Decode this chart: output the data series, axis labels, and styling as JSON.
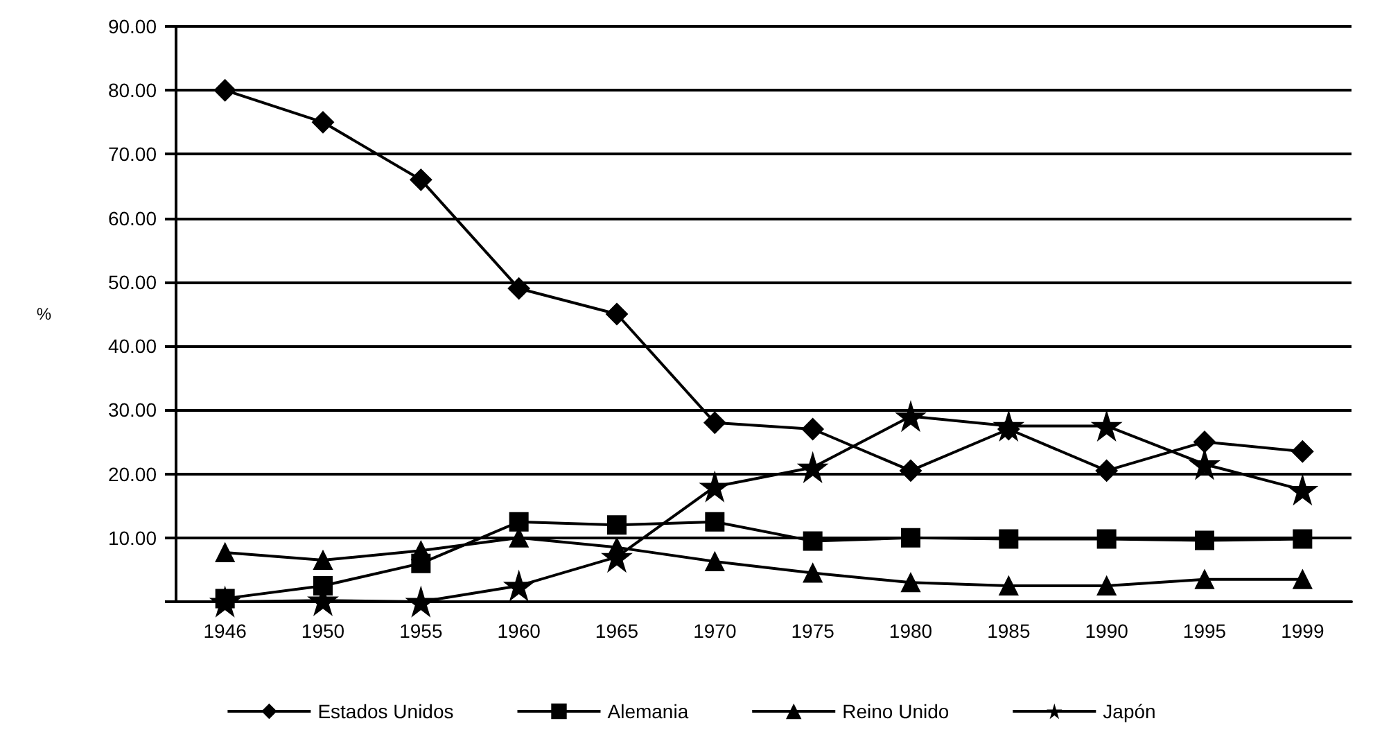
{
  "chart_data": {
    "type": "line",
    "ylabel": "%",
    "categories": [
      "1946",
      "1950",
      "1955",
      "1960",
      "1965",
      "1970",
      "1975",
      "1980",
      "1985",
      "1990",
      "1995",
      "1999"
    ],
    "series": [
      {
        "name": "Estados Unidos",
        "color": "#000000",
        "marker": "diamond",
        "values": [
          80,
          75,
          66,
          49,
          45,
          28,
          27,
          20.5,
          27,
          20.5,
          25,
          23.5
        ]
      },
      {
        "name": "Alemania",
        "color": "#000000",
        "marker": "square",
        "values": [
          0.5,
          2.5,
          6,
          12.5,
          12,
          12.5,
          9.5,
          10,
          9.8,
          9.8,
          9.6,
          9.8
        ]
      },
      {
        "name": "Reino Unido",
        "color": "#000000",
        "marker": "triangle",
        "values": [
          7.7,
          6.5,
          8,
          10,
          8.5,
          6.3,
          4.5,
          3,
          2.5,
          2.5,
          3.5,
          3.5
        ]
      },
      {
        "name": "Japón",
        "color": "#000000",
        "marker": "star",
        "values": [
          0,
          0.2,
          0,
          2.5,
          7,
          18,
          21,
          29,
          27.5,
          27.5,
          21.5,
          17.5
        ]
      }
    ],
    "ylim": [
      0,
      90
    ],
    "yticks": [
      {
        "value": 0,
        "label": null
      },
      {
        "value": 10,
        "label": "10.00"
      },
      {
        "value": 20,
        "label": "20.00"
      },
      {
        "value": 30,
        "label": "30.00"
      },
      {
        "value": 40,
        "label": "40.00"
      },
      {
        "value": 50,
        "label": "50.00"
      },
      {
        "value": 60,
        "label": "60.00"
      },
      {
        "value": 70,
        "label": "70.00"
      },
      {
        "value": 80,
        "label": "80.00"
      },
      {
        "value": 90,
        "label": "90.00"
      }
    ],
    "grid": "y",
    "legend": "bottom",
    "line_style": "solid"
  }
}
